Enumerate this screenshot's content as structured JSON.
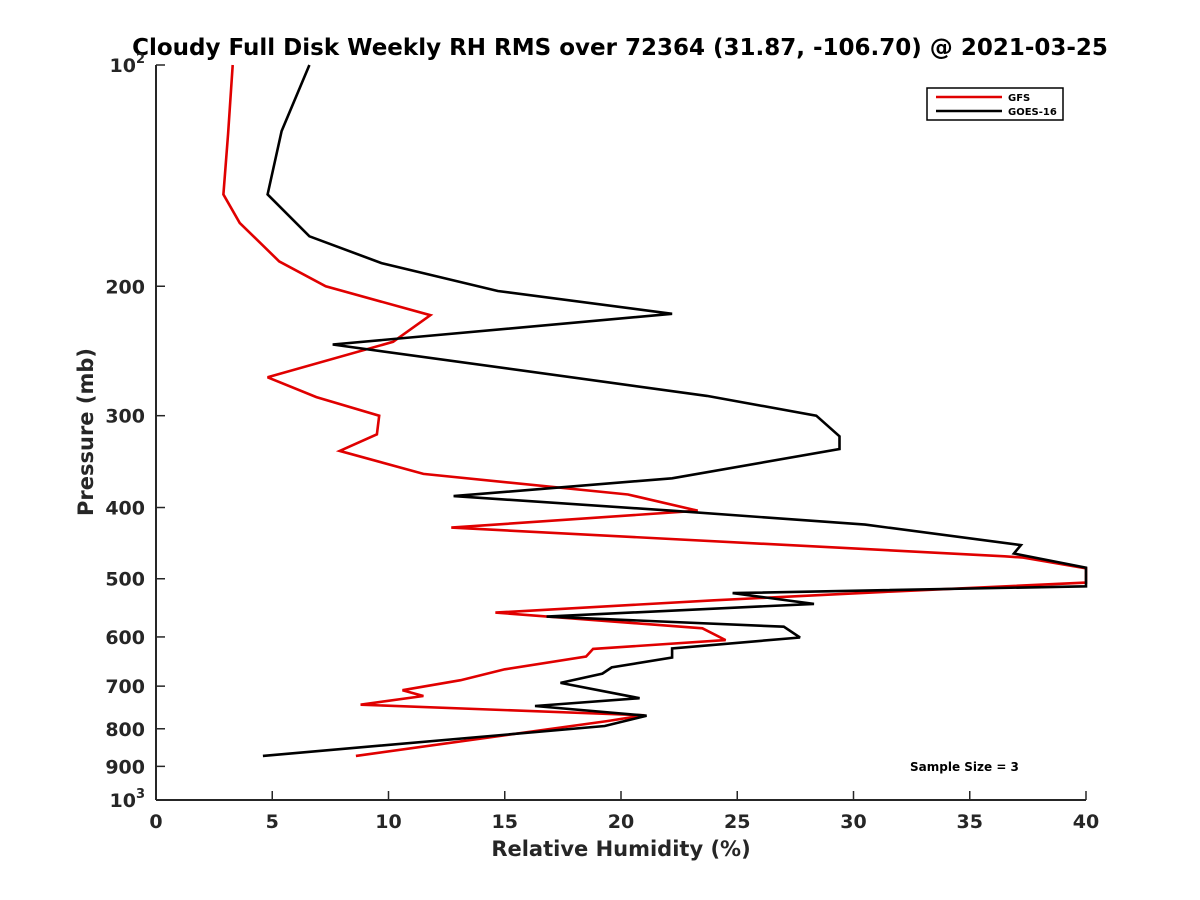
{
  "chart_data": {
    "type": "line",
    "title": "Cloudy Full Disk Weekly RH RMS over 72364 (31.87, -106.70) @ 2021-03-25",
    "xlabel": "Relative Humidity (%)",
    "ylabel": "Pressure (mb)",
    "xlim": [
      0,
      40
    ],
    "ylim": [
      100,
      1000
    ],
    "y_scale": "log",
    "y_reversed": true,
    "xticks": [
      0,
      5,
      10,
      15,
      20,
      25,
      30,
      35,
      40
    ],
    "xtick_labels": [
      "0",
      "5",
      "10",
      "15",
      "20",
      "25",
      "30",
      "35",
      "40"
    ],
    "yticks": [
      100,
      200,
      300,
      400,
      500,
      600,
      700,
      800,
      900,
      1000
    ],
    "ytick_labels": [
      {
        "base": "10",
        "exp": "2"
      },
      {
        "base": "200"
      },
      {
        "base": "300"
      },
      {
        "base": "400"
      },
      {
        "base": "500"
      },
      {
        "base": "600"
      },
      {
        "base": "700"
      },
      {
        "base": "800"
      },
      {
        "base": "900"
      },
      {
        "base": "10",
        "exp": "3"
      }
    ],
    "grid": false,
    "legend_position": "top-right",
    "annotation": "Sample Size = 3",
    "series": [
      {
        "name": "GFS",
        "color": "#e00000",
        "points": [
          [
            3.3,
            100
          ],
          [
            3.1,
            124
          ],
          [
            2.9,
            150
          ],
          [
            3.6,
            164
          ],
          [
            5.3,
            185
          ],
          [
            7.3,
            200
          ],
          [
            11.8,
            219
          ],
          [
            10.2,
            238
          ],
          [
            4.8,
            266
          ],
          [
            6.9,
            283
          ],
          [
            9.6,
            300
          ],
          [
            9.5,
            318
          ],
          [
            7.9,
            335
          ],
          [
            11.5,
            360
          ],
          [
            20.3,
            384
          ],
          [
            23.3,
            404
          ],
          [
            12.7,
            426
          ],
          [
            36.5,
            466
          ],
          [
            37.3,
            468
          ],
          [
            40.0,
            484
          ],
          [
            40.0,
            506
          ],
          [
            31.3,
            521
          ],
          [
            24.0,
            535
          ],
          [
            14.6,
            556
          ],
          [
            23.5,
            584
          ],
          [
            24.5,
            606
          ],
          [
            18.8,
            623
          ],
          [
            18.5,
            638
          ],
          [
            15.0,
            664
          ],
          [
            13.1,
            687
          ],
          [
            10.6,
            709
          ],
          [
            11.5,
            722
          ],
          [
            8.8,
            742
          ],
          [
            21.0,
            767
          ],
          [
            19.4,
            781
          ],
          [
            8.6,
            871
          ]
        ]
      },
      {
        "name": "GOES-16",
        "color": "#000000",
        "points": [
          [
            6.6,
            100
          ],
          [
            5.4,
            123
          ],
          [
            4.8,
            150
          ],
          [
            6.6,
            171
          ],
          [
            9.7,
            186
          ],
          [
            14.7,
            203
          ],
          [
            22.2,
            218
          ],
          [
            7.6,
            240
          ],
          [
            23.7,
            282
          ],
          [
            28.4,
            300
          ],
          [
            29.4,
            320
          ],
          [
            29.4,
            333
          ],
          [
            22.2,
            365
          ],
          [
            12.8,
            386
          ],
          [
            22.2,
            404
          ],
          [
            30.5,
            422
          ],
          [
            37.2,
            450
          ],
          [
            36.9,
            462
          ],
          [
            40.0,
            483
          ],
          [
            40.0,
            512
          ],
          [
            24.8,
            523
          ],
          [
            28.3,
            541
          ],
          [
            16.8,
            563
          ],
          [
            27.0,
            581
          ],
          [
            27.7,
            601
          ],
          [
            22.2,
            622
          ],
          [
            22.2,
            640
          ],
          [
            19.6,
            660
          ],
          [
            19.2,
            673
          ],
          [
            17.4,
            693
          ],
          [
            20.8,
            727
          ],
          [
            16.3,
            745
          ],
          [
            21.1,
            768
          ],
          [
            19.3,
            793
          ],
          [
            4.6,
            871
          ]
        ]
      }
    ]
  }
}
